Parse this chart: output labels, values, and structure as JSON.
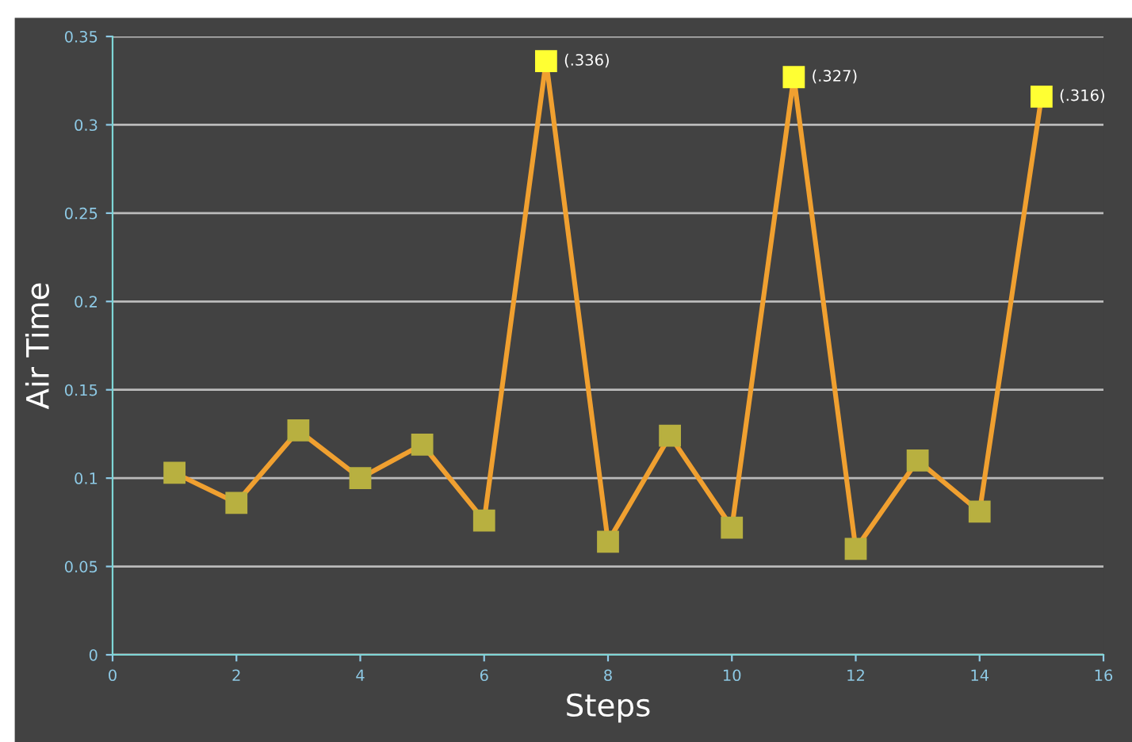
{
  "chart_data": {
    "type": "line",
    "xlabel": "Steps",
    "ylabel": "Air Time",
    "x": [
      1,
      2,
      3,
      4,
      5,
      6,
      7,
      8,
      9,
      10,
      11,
      12,
      13,
      14,
      15
    ],
    "series": [
      {
        "color": "#f0a030",
        "values": [
          0.103,
          0.086,
          0.127,
          0.1,
          0.119,
          0.076,
          0.336,
          0.064,
          0.124,
          0.072,
          0.327,
          0.06,
          0.11,
          0.081,
          0.316
        ],
        "colors": [
          "#b8b040",
          "#b8b040",
          "#b8b040",
          "#b8b040",
          "#b8b040",
          "#b8b040",
          "#ffff33",
          "#b8b040",
          "#b8b040",
          "#b8b040",
          "#ffff33",
          "#b8b040",
          "#b8b040",
          "#b8b040",
          "#ffff33"
        ],
        "value_labels": [
          null,
          null,
          null,
          null,
          null,
          null,
          "(.336)",
          null,
          null,
          null,
          "(.327)",
          null,
          null,
          null,
          "(.316)"
        ]
      }
    ],
    "marker": "square",
    "line_style": "solid",
    "grid": "y",
    "xlim": [
      0,
      16
    ],
    "xticks": [
      0,
      2,
      4,
      6,
      8,
      10,
      12,
      14,
      16
    ],
    "ylim": [
      0,
      0.35
    ],
    "yticks": [
      0,
      0.05,
      0.1,
      0.15,
      0.2,
      0.25,
      0.3,
      0.35
    ]
  }
}
